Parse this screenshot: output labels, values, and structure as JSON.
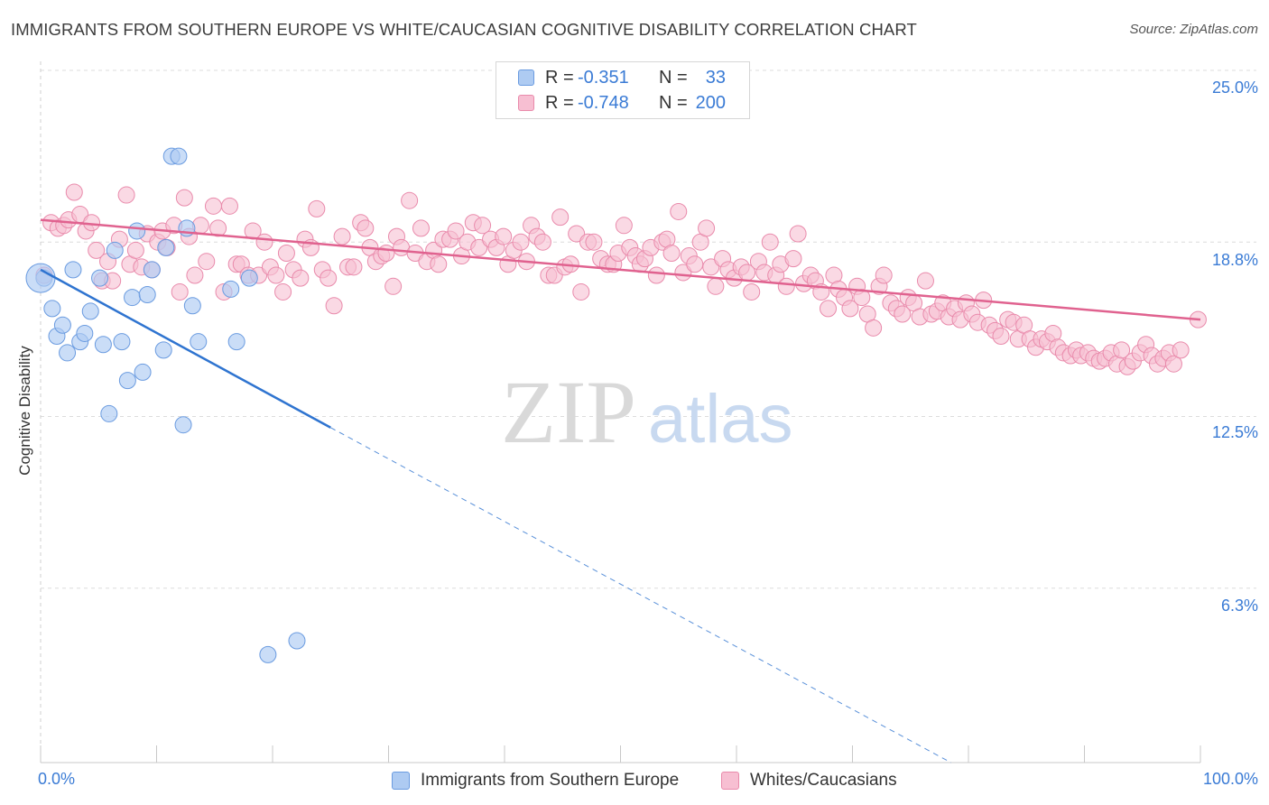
{
  "title": "IMMIGRANTS FROM SOUTHERN EUROPE VS WHITE/CAUCASIAN COGNITIVE DISABILITY CORRELATION CHART",
  "source": "Source: ZipAtlas.com",
  "watermark": {
    "zip": "ZIP",
    "atlas": "atlas"
  },
  "legend": {
    "rows": [
      {
        "r_label": "R =",
        "r_value": "-0.351",
        "n_label": "N =",
        "n_value": "33",
        "color": "#aecbf2",
        "border": "#6a9be0"
      },
      {
        "r_label": "R =",
        "r_value": "-0.748",
        "n_label": "N =",
        "n_value": "200",
        "color": "#f7bfd2",
        "border": "#e98aab"
      }
    ]
  },
  "bottom_legend": [
    {
      "label": "Immigrants from Southern Europe",
      "color": "#aecbf2",
      "border": "#6a9be0"
    },
    {
      "label": "Whites/Caucasians",
      "color": "#f7bfd2",
      "border": "#e98aab"
    }
  ],
  "axes": {
    "ylabel": "Cognitive Disability",
    "y_ticks": [
      "25.0%",
      "18.8%",
      "12.5%",
      "6.3%"
    ],
    "x_min_label": "0.0%",
    "x_max_label": "100.0%"
  },
  "chart_data": {
    "type": "scatter",
    "xlim": [
      0,
      100
    ],
    "ylim": [
      0,
      25
    ],
    "x_unit": "%",
    "y_unit": "%",
    "y_tick_values": [
      25.0,
      18.8,
      12.5,
      6.3
    ],
    "grid": "horizontal dashed",
    "series": [
      {
        "name": "Immigrants from Southern Europe",
        "color": "#aecbf2",
        "stroke": "#6a9be0",
        "trend": {
          "x0": 0.0,
          "y0": 17.8,
          "x1": 25.0,
          "y1": 12.1,
          "dash_to_x": 78.5,
          "dash_to_y": 0.0,
          "color": "#2f74d0"
        },
        "points": [
          [
            0.3,
            17.5
          ],
          [
            1.0,
            16.4
          ],
          [
            1.4,
            15.4
          ],
          [
            1.9,
            15.8
          ],
          [
            2.3,
            14.8
          ],
          [
            2.8,
            17.8
          ],
          [
            3.4,
            15.2
          ],
          [
            3.8,
            15.5
          ],
          [
            4.3,
            16.3
          ],
          [
            5.1,
            17.5
          ],
          [
            5.4,
            15.1
          ],
          [
            5.9,
            12.6
          ],
          [
            6.4,
            18.5
          ],
          [
            7.0,
            15.2
          ],
          [
            7.5,
            13.8
          ],
          [
            7.9,
            16.8
          ],
          [
            8.3,
            19.2
          ],
          [
            8.8,
            14.1
          ],
          [
            9.2,
            16.9
          ],
          [
            9.6,
            17.8
          ],
          [
            10.6,
            14.9
          ],
          [
            10.8,
            18.6
          ],
          [
            11.3,
            21.9
          ],
          [
            11.9,
            21.9
          ],
          [
            12.3,
            12.2
          ],
          [
            12.6,
            19.3
          ],
          [
            13.1,
            16.5
          ],
          [
            13.6,
            15.2
          ],
          [
            16.4,
            17.1
          ],
          [
            16.9,
            15.2
          ],
          [
            18.0,
            17.5
          ],
          [
            19.6,
            3.9
          ],
          [
            22.1,
            4.4
          ]
        ],
        "big_point": [
          0.0,
          17.5
        ]
      },
      {
        "name": "Whites/Caucasians",
        "color": "#f7bfd2",
        "stroke": "#e98aab",
        "trend": {
          "x0": 0.0,
          "y0": 19.6,
          "x1": 100.0,
          "y1": 16.0,
          "color": "#e0628f"
        },
        "points": [
          [
            0.3,
            17.6
          ],
          [
            0.9,
            19.5
          ],
          [
            1.5,
            19.3
          ],
          [
            2.0,
            19.4
          ],
          [
            2.4,
            19.6
          ],
          [
            2.9,
            20.6
          ],
          [
            3.4,
            19.8
          ],
          [
            3.9,
            19.2
          ],
          [
            4.4,
            19.5
          ],
          [
            4.8,
            18.5
          ],
          [
            5.3,
            17.4
          ],
          [
            5.8,
            18.1
          ],
          [
            6.2,
            17.4
          ],
          [
            6.8,
            18.9
          ],
          [
            7.4,
            20.5
          ],
          [
            7.7,
            18.0
          ],
          [
            8.2,
            18.5
          ],
          [
            8.7,
            17.9
          ],
          [
            9.2,
            19.1
          ],
          [
            9.6,
            17.8
          ],
          [
            10.1,
            18.8
          ],
          [
            10.5,
            19.2
          ],
          [
            10.9,
            18.6
          ],
          [
            11.5,
            19.4
          ],
          [
            12.0,
            17.0
          ],
          [
            12.4,
            20.4
          ],
          [
            12.8,
            19.0
          ],
          [
            13.3,
            17.6
          ],
          [
            13.8,
            19.4
          ],
          [
            14.3,
            18.1
          ],
          [
            14.9,
            20.1
          ],
          [
            15.3,
            19.3
          ],
          [
            15.8,
            17.0
          ],
          [
            16.3,
            20.1
          ],
          [
            16.9,
            18.0
          ],
          [
            17.3,
            18.0
          ],
          [
            17.9,
            17.6
          ],
          [
            18.3,
            19.2
          ],
          [
            18.8,
            17.6
          ],
          [
            19.3,
            18.8
          ],
          [
            19.8,
            17.9
          ],
          [
            20.3,
            17.6
          ],
          [
            20.9,
            17.0
          ],
          [
            21.2,
            18.4
          ],
          [
            21.8,
            17.8
          ],
          [
            22.4,
            17.5
          ],
          [
            22.8,
            18.9
          ],
          [
            23.3,
            18.6
          ],
          [
            23.8,
            20.0
          ],
          [
            24.3,
            17.8
          ],
          [
            24.8,
            17.5
          ],
          [
            25.3,
            16.5
          ],
          [
            26.0,
            19.0
          ],
          [
            26.5,
            17.9
          ],
          [
            27.0,
            17.9
          ],
          [
            27.6,
            19.5
          ],
          [
            28.0,
            19.3
          ],
          [
            28.4,
            18.6
          ],
          [
            28.9,
            18.1
          ],
          [
            29.4,
            18.3
          ],
          [
            29.8,
            18.4
          ],
          [
            30.4,
            17.2
          ],
          [
            30.7,
            19.0
          ],
          [
            31.1,
            18.6
          ],
          [
            31.8,
            20.3
          ],
          [
            32.3,
            18.4
          ],
          [
            32.8,
            19.3
          ],
          [
            33.3,
            18.1
          ],
          [
            33.9,
            18.5
          ],
          [
            34.3,
            18.0
          ],
          [
            34.7,
            18.9
          ],
          [
            35.3,
            18.9
          ],
          [
            35.8,
            19.2
          ],
          [
            36.3,
            18.3
          ],
          [
            36.8,
            18.8
          ],
          [
            37.3,
            19.5
          ],
          [
            37.8,
            18.6
          ],
          [
            38.1,
            19.4
          ],
          [
            38.8,
            18.9
          ],
          [
            39.3,
            18.6
          ],
          [
            39.9,
            19.0
          ],
          [
            40.3,
            18.0
          ],
          [
            40.8,
            18.5
          ],
          [
            41.4,
            18.8
          ],
          [
            41.9,
            18.1
          ],
          [
            42.3,
            19.4
          ],
          [
            42.8,
            19.0
          ],
          [
            43.3,
            18.8
          ],
          [
            43.8,
            17.6
          ],
          [
            44.3,
            17.6
          ],
          [
            44.8,
            19.7
          ],
          [
            45.2,
            17.9
          ],
          [
            45.7,
            18.0
          ],
          [
            46.2,
            19.1
          ],
          [
            46.6,
            17.0
          ],
          [
            47.2,
            18.8
          ],
          [
            47.7,
            18.8
          ],
          [
            48.3,
            18.2
          ],
          [
            48.9,
            18.0
          ],
          [
            49.4,
            18.0
          ],
          [
            49.8,
            18.4
          ],
          [
            50.3,
            19.4
          ],
          [
            50.8,
            18.6
          ],
          [
            51.3,
            18.3
          ],
          [
            51.7,
            18.0
          ],
          [
            52.1,
            18.2
          ],
          [
            52.6,
            18.6
          ],
          [
            53.1,
            17.6
          ],
          [
            53.6,
            18.8
          ],
          [
            54.0,
            18.9
          ],
          [
            54.4,
            18.4
          ],
          [
            55.0,
            19.9
          ],
          [
            55.4,
            17.7
          ],
          [
            55.9,
            18.3
          ],
          [
            56.4,
            18.0
          ],
          [
            56.9,
            18.8
          ],
          [
            57.4,
            19.3
          ],
          [
            57.8,
            17.9
          ],
          [
            58.2,
            17.2
          ],
          [
            58.8,
            18.2
          ],
          [
            59.3,
            17.8
          ],
          [
            59.8,
            17.5
          ],
          [
            60.4,
            17.9
          ],
          [
            60.9,
            17.7
          ],
          [
            61.3,
            17.0
          ],
          [
            61.9,
            18.1
          ],
          [
            62.4,
            17.7
          ],
          [
            62.9,
            18.8
          ],
          [
            63.4,
            17.6
          ],
          [
            63.8,
            18.0
          ],
          [
            64.3,
            17.2
          ],
          [
            64.9,
            18.2
          ],
          [
            65.3,
            19.1
          ],
          [
            65.8,
            17.3
          ],
          [
            66.4,
            17.6
          ],
          [
            66.8,
            17.4
          ],
          [
            67.3,
            17.0
          ],
          [
            67.9,
            16.4
          ],
          [
            68.4,
            17.6
          ],
          [
            68.8,
            17.1
          ],
          [
            69.3,
            16.8
          ],
          [
            69.8,
            16.4
          ],
          [
            70.4,
            17.2
          ],
          [
            70.8,
            16.8
          ],
          [
            71.3,
            16.2
          ],
          [
            71.8,
            15.7
          ],
          [
            72.3,
            17.2
          ],
          [
            72.7,
            17.6
          ],
          [
            73.3,
            16.6
          ],
          [
            73.8,
            16.4
          ],
          [
            74.3,
            16.2
          ],
          [
            74.8,
            16.8
          ],
          [
            75.3,
            16.6
          ],
          [
            75.8,
            16.1
          ],
          [
            76.3,
            17.4
          ],
          [
            76.8,
            16.2
          ],
          [
            77.3,
            16.3
          ],
          [
            77.8,
            16.6
          ],
          [
            78.3,
            16.1
          ],
          [
            78.8,
            16.4
          ],
          [
            79.3,
            16.0
          ],
          [
            79.8,
            16.6
          ],
          [
            80.3,
            16.2
          ],
          [
            80.8,
            15.9
          ],
          [
            81.3,
            16.7
          ],
          [
            81.8,
            15.8
          ],
          [
            82.3,
            15.6
          ],
          [
            82.8,
            15.4
          ],
          [
            83.4,
            16.0
          ],
          [
            83.9,
            15.9
          ],
          [
            84.3,
            15.3
          ],
          [
            84.8,
            15.8
          ],
          [
            85.3,
            15.3
          ],
          [
            85.8,
            15.0
          ],
          [
            86.3,
            15.3
          ],
          [
            86.8,
            15.2
          ],
          [
            87.3,
            15.5
          ],
          [
            87.7,
            15.0
          ],
          [
            88.2,
            14.8
          ],
          [
            88.8,
            14.7
          ],
          [
            89.3,
            14.9
          ],
          [
            89.7,
            14.7
          ],
          [
            90.3,
            14.8
          ],
          [
            90.8,
            14.6
          ],
          [
            91.3,
            14.5
          ],
          [
            91.8,
            14.6
          ],
          [
            92.3,
            14.8
          ],
          [
            92.8,
            14.4
          ],
          [
            93.2,
            14.9
          ],
          [
            93.7,
            14.3
          ],
          [
            94.2,
            14.5
          ],
          [
            94.8,
            14.8
          ],
          [
            95.3,
            15.1
          ],
          [
            95.8,
            14.7
          ],
          [
            96.3,
            14.4
          ],
          [
            96.8,
            14.6
          ],
          [
            97.3,
            14.8
          ],
          [
            97.7,
            14.4
          ],
          [
            98.3,
            14.9
          ],
          [
            99.8,
            16.0
          ]
        ]
      }
    ]
  }
}
